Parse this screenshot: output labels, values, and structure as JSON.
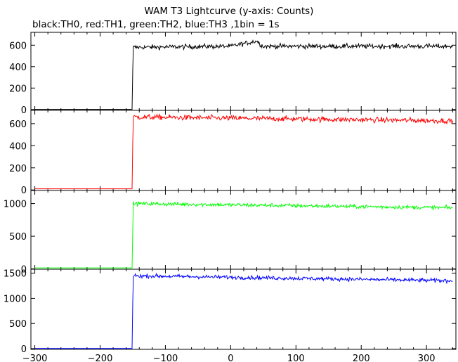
{
  "title": "WAM T3 Lightcurve (y-axis: Counts)",
  "subtitle": "black:TH0, red:TH1, green:TH2, blue:TH3 ,1bin = 1s",
  "chart_data": [
    {
      "type": "line",
      "series": [
        {
          "name": "TH0",
          "color": "#000000",
          "x": [
            -300,
            -151,
            -150,
            -149,
            0,
            40,
            45,
            50,
            340
          ],
          "values": [
            2,
            2,
            375,
            580,
            590,
            640,
            610,
            590,
            590
          ],
          "noise": 22
        }
      ],
      "ylim": [
        -8,
        720
      ],
      "yticks": [
        0,
        200,
        400,
        600
      ],
      "xlim": [
        -306,
        345
      ],
      "xlabel": "",
      "ylabel": ""
    },
    {
      "type": "line",
      "series": [
        {
          "name": "TH1",
          "color": "#ff0000",
          "x": [
            -300,
            -151,
            -150,
            -149,
            340
          ],
          "values": [
            10,
            10,
            430,
            660,
            625
          ],
          "noise": 24
        }
      ],
      "ylim": [
        -5,
        720
      ],
      "yticks": [
        0,
        200,
        400,
        600
      ],
      "xlim": [
        -306,
        345
      ],
      "xlabel": "",
      "ylabel": ""
    },
    {
      "type": "line",
      "series": [
        {
          "name": "TH2",
          "color": "#00ff00",
          "x": [
            -300,
            -151,
            -150,
            -149,
            340
          ],
          "values": [
            15,
            15,
            600,
            1000,
            935
          ],
          "noise": 30
        }
      ],
      "ylim": [
        -5,
        1200
      ],
      "yticks": [
        0,
        500,
        1000
      ],
      "xlim": [
        -306,
        345
      ],
      "xlabel": "",
      "ylabel": ""
    },
    {
      "type": "line",
      "series": [
        {
          "name": "TH3",
          "color": "#0000ff",
          "x": [
            -300,
            -151,
            -150,
            -149,
            340
          ],
          "values": [
            5,
            5,
            930,
            1450,
            1350
          ],
          "noise": 38
        }
      ],
      "ylim": [
        -15,
        1580
      ],
      "yticks": [
        0,
        500,
        1000,
        1500
      ],
      "xlim": [
        -306,
        345
      ],
      "xticks": [
        -300,
        -200,
        -100,
        0,
        100,
        200,
        300
      ],
      "xlabel": "",
      "ylabel": ""
    }
  ]
}
